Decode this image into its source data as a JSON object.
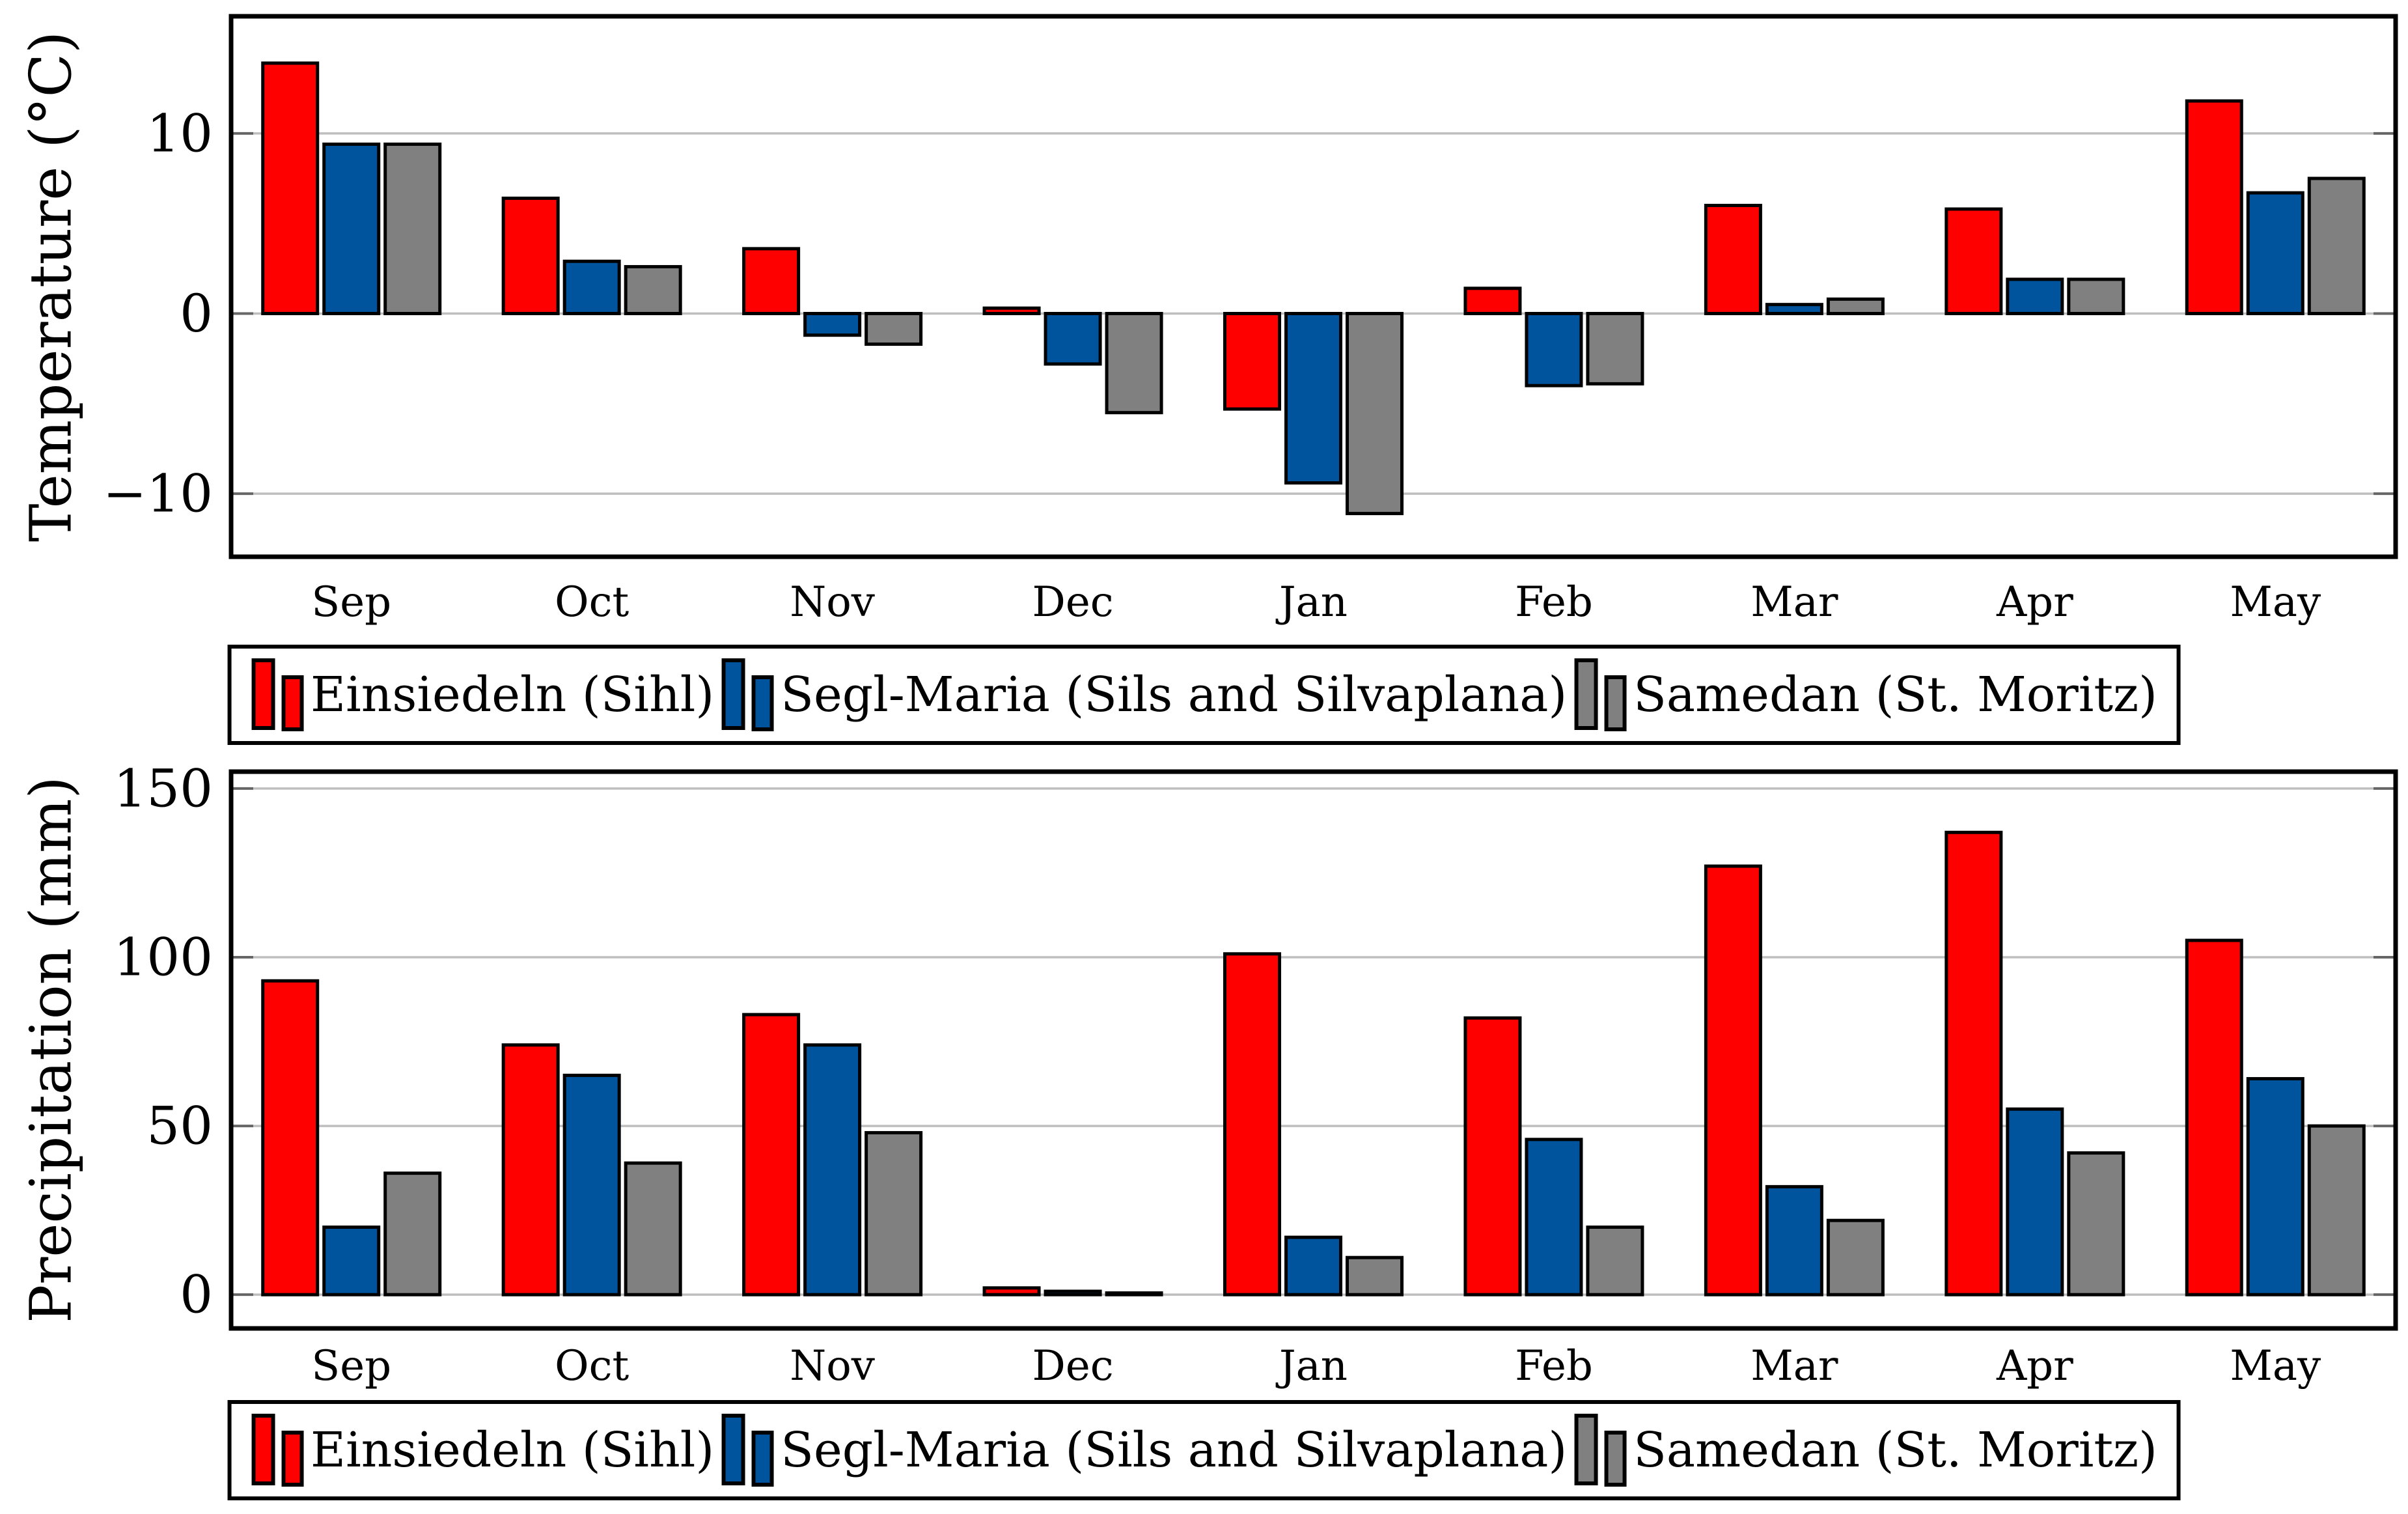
{
  "figure": {
    "background": "#ffffff",
    "months": [
      "Sep",
      "Oct",
      "Nov",
      "Dec",
      "Jan",
      "Feb",
      "Mar",
      "Apr",
      "May"
    ]
  },
  "colors": {
    "series_red": "#ff0000",
    "series_blue": "#00549e",
    "series_gray": "#808080",
    "bar_stroke": "#000000",
    "grid": "#bebebe",
    "tick": "#666666",
    "frame": "#000000",
    "text": "#000000"
  },
  "legend": {
    "entries": [
      {
        "label": "Einsiedeln (Sihl)",
        "color_key": "series_red"
      },
      {
        "label": "Segl-Maria (Sils and Silvaplana)",
        "color_key": "series_blue"
      },
      {
        "label": "Samedan (St. Moritz)",
        "color_key": "series_gray"
      }
    ]
  },
  "chart_data": [
    {
      "type": "bar",
      "title": "",
      "ylabel": "Temperature (°C)",
      "xlabel": "",
      "categories": [
        "Sep",
        "Oct",
        "Nov",
        "Dec",
        "Jan",
        "Feb",
        "Mar",
        "Apr",
        "May"
      ],
      "ylim": [
        -13.5,
        16.5
      ],
      "yticks": [
        10,
        0,
        -10
      ],
      "ytick_labels": [
        "10",
        "0",
        "−10"
      ],
      "grid": true,
      "legend_position": "below",
      "series": [
        {
          "name": "Einsiedeln (Sihl)",
          "color_key": "series_red",
          "values": [
            13.9,
            6.4,
            3.6,
            0.3,
            -5.3,
            1.4,
            6.0,
            5.8,
            11.8
          ]
        },
        {
          "name": "Segl-Maria (Sils and Silvaplana)",
          "color_key": "series_blue",
          "values": [
            9.4,
            2.9,
            -1.2,
            -2.8,
            -9.4,
            -4.0,
            0.5,
            1.9,
            6.7
          ]
        },
        {
          "name": "Samedan (St. Moritz)",
          "color_key": "series_gray",
          "values": [
            9.4,
            2.6,
            -1.7,
            -5.5,
            -11.1,
            -3.9,
            0.8,
            1.9,
            7.5
          ]
        }
      ]
    },
    {
      "type": "bar",
      "title": "",
      "ylabel": "Precipitation (mm)",
      "xlabel": "",
      "categories": [
        "Sep",
        "Oct",
        "Nov",
        "Dec",
        "Jan",
        "Feb",
        "Mar",
        "Apr",
        "May"
      ],
      "ylim": [
        -10,
        155
      ],
      "yticks": [
        150,
        100,
        50,
        0
      ],
      "ytick_labels": [
        "150",
        "100",
        "50",
        "0"
      ],
      "grid": true,
      "legend_position": "below",
      "series": [
        {
          "name": "Einsiedeln (Sihl)",
          "color_key": "series_red",
          "values": [
            93,
            74,
            83,
            2,
            101,
            82,
            127,
            137,
            105
          ]
        },
        {
          "name": "Segl-Maria (Sils and Silvaplana)",
          "color_key": "series_blue",
          "values": [
            20,
            65,
            74,
            1,
            17,
            46,
            32,
            55,
            64
          ]
        },
        {
          "name": "Samedan (St. Moritz)",
          "color_key": "series_gray",
          "values": [
            36,
            39,
            48,
            0.5,
            11,
            20,
            22,
            42,
            50
          ]
        }
      ]
    }
  ]
}
